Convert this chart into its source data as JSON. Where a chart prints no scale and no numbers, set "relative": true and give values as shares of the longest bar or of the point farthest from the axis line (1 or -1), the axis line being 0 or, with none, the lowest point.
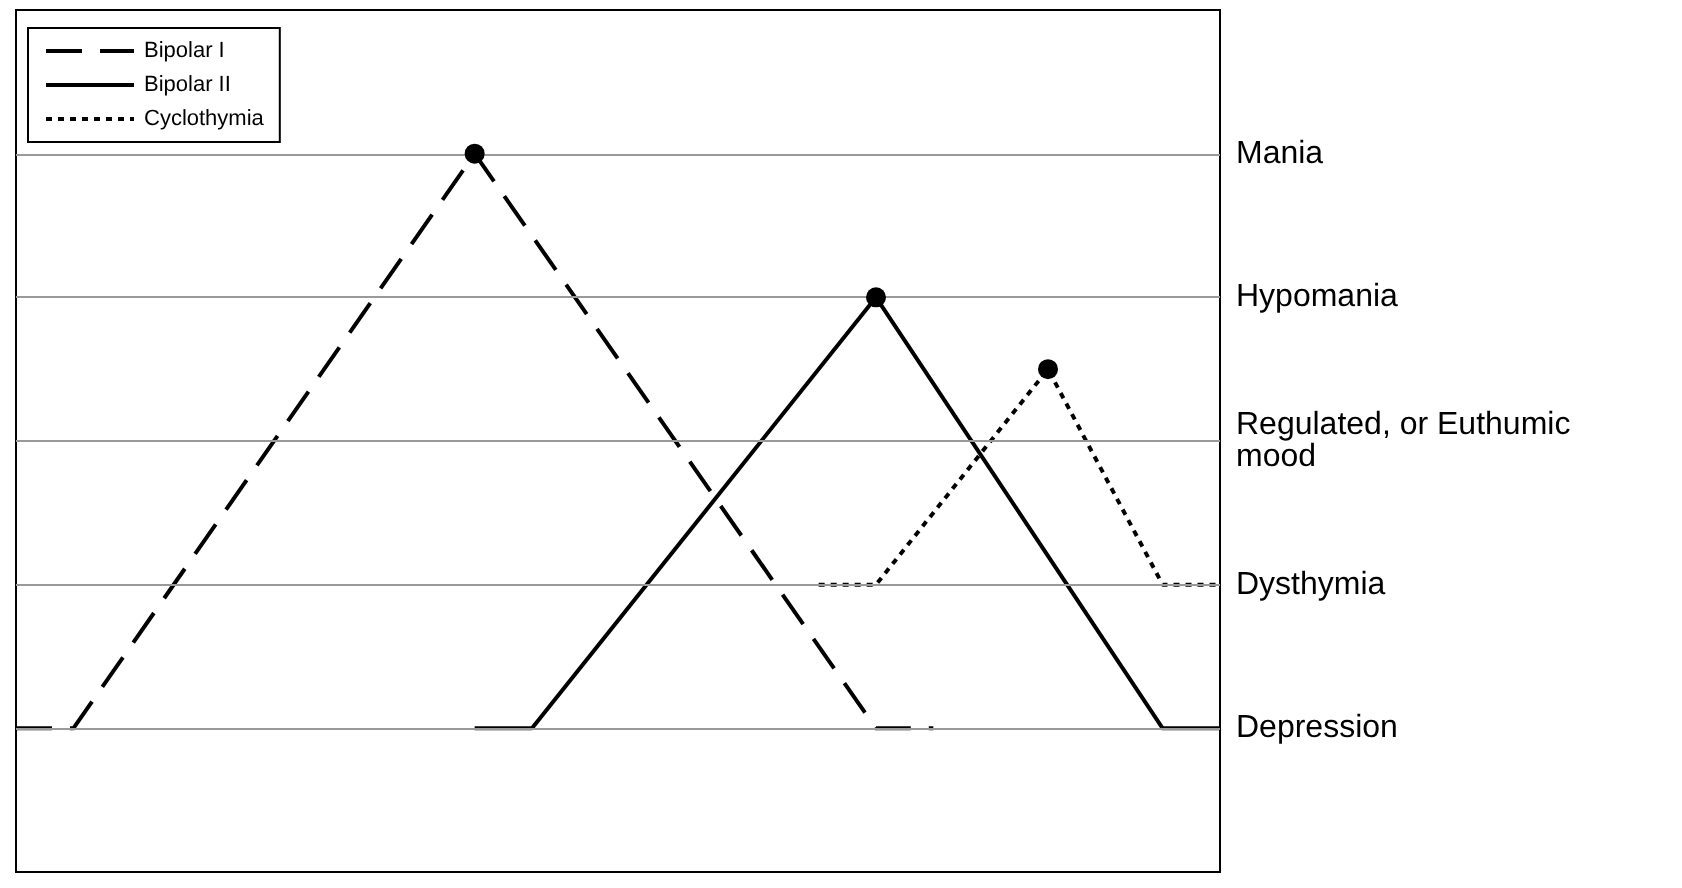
{
  "chart_data": {
    "type": "line",
    "relative": true,
    "categories": [
      null,
      null,
      null,
      null,
      null,
      null,
      null,
      null,
      null,
      null,
      null,
      null,
      null,
      null,
      null,
      null,
      null,
      null,
      null,
      null,
      null,
      null
    ],
    "series": [
      {
        "name": "Bipolar I",
        "color": "#000000",
        "line_style": "dashed",
        "values": [
          0.2,
          0.2,
          null,
          null,
          null,
          null,
          null,
          null,
          1,
          null,
          null,
          null,
          null,
          null,
          null,
          0.2,
          0.2,
          null,
          null,
          null,
          null,
          null
        ]
      },
      {
        "name": "Bipolar II",
        "color": "#000000",
        "line_style": "solid",
        "values": [
          null,
          null,
          null,
          null,
          null,
          null,
          null,
          null,
          0.2,
          0.2,
          null,
          null,
          null,
          null,
          null,
          0.8,
          null,
          null,
          null,
          null,
          0.2,
          0.2
        ]
      },
      {
        "name": "Cyclothymia",
        "color": "#000000",
        "line_style": "dotted",
        "values": [
          null,
          null,
          null,
          null,
          null,
          null,
          null,
          null,
          null,
          null,
          null,
          null,
          null,
          null,
          0.4,
          0.4,
          null,
          null,
          0.7,
          null,
          0.4,
          0.4
        ]
      }
    ],
    "ref_lines": [
      {
        "axis": "y",
        "value": 1,
        "label": "Mania",
        "color": "#999999"
      },
      {
        "axis": "y",
        "value": 0.8,
        "label": "Hypomania",
        "color": "#999999"
      },
      {
        "axis": "y",
        "value": 0.6,
        "label": "Regulated, or Euthumic mood",
        "color": "#999999"
      },
      {
        "axis": "y",
        "value": 0.4,
        "label": "Dysthymia",
        "color": "#999999"
      },
      {
        "axis": "y",
        "value": 0.2,
        "label": "Depression",
        "color": "#999999"
      }
    ],
    "legend": "top left",
    "marker": "none"
  }
}
